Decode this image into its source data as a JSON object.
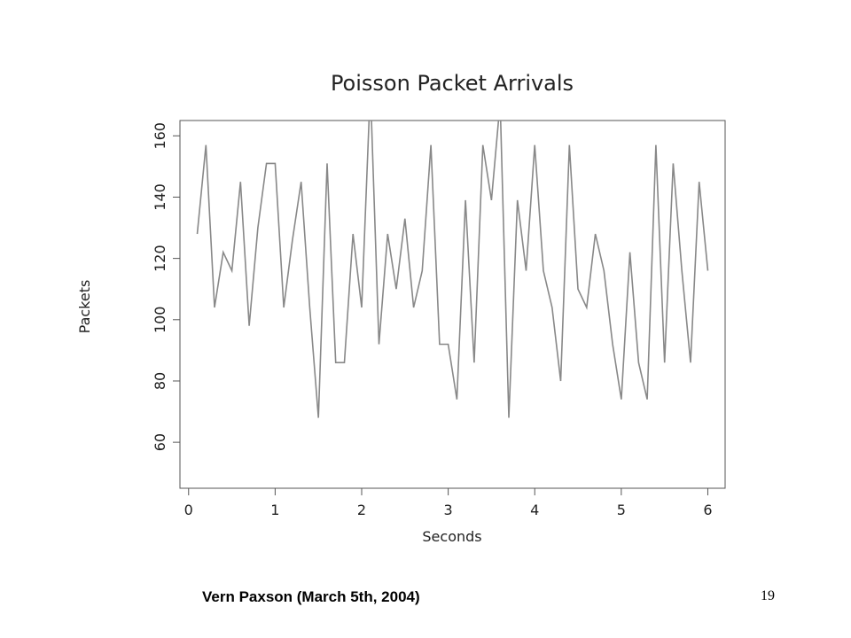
{
  "chart_data": {
    "type": "line",
    "title": "Poisson Packet Arrivals",
    "xlabel": "Seconds",
    "ylabel": "Packets",
    "xlim": [
      -0.1,
      6.2
    ],
    "ylim": [
      45,
      165
    ],
    "xticks": [
      0,
      1,
      2,
      3,
      4,
      5,
      6
    ],
    "yticks": [
      60,
      80,
      100,
      120,
      140,
      160
    ],
    "grid": false,
    "series": [
      {
        "x": [
          0.1,
          0.2,
          0.3,
          0.4,
          0.5,
          0.6,
          0.7,
          0.8,
          0.9,
          1.0,
          1.1,
          1.2,
          1.3,
          1.4,
          1.5,
          1.6,
          1.7,
          1.8,
          1.9,
          2.0,
          2.1,
          2.2,
          2.3,
          2.4,
          2.5,
          2.6,
          2.7,
          2.8,
          2.9,
          3.0,
          3.1,
          3.2,
          3.3,
          3.4,
          3.5,
          3.6,
          3.7,
          3.8,
          3.9,
          4.0,
          4.1,
          4.2,
          4.3,
          4.4,
          4.5,
          4.6,
          4.7,
          4.8,
          4.9,
          5.0,
          5.1,
          5.2,
          5.3,
          5.4,
          5.5,
          5.6,
          5.7,
          5.8,
          5.9,
          6.0
        ],
        "values": [
          128,
          157,
          104,
          122,
          116,
          145,
          98,
          130,
          151,
          151,
          104,
          126,
          145,
          104,
          68,
          151,
          86,
          86,
          128,
          104,
          176,
          92,
          128,
          110,
          133,
          104,
          116,
          157,
          92,
          92,
          74,
          139,
          86,
          157,
          139,
          171,
          68,
          139,
          116,
          157,
          116,
          104,
          80,
          157,
          110,
          104,
          128,
          116,
          92,
          74,
          122,
          86,
          74,
          157,
          86,
          151,
          116,
          86,
          145,
          116
        ]
      }
    ],
    "line_color": "#888888"
  },
  "footer": {
    "caption": "Vern Paxson (March 5th, 2004)",
    "page_number": "19"
  }
}
